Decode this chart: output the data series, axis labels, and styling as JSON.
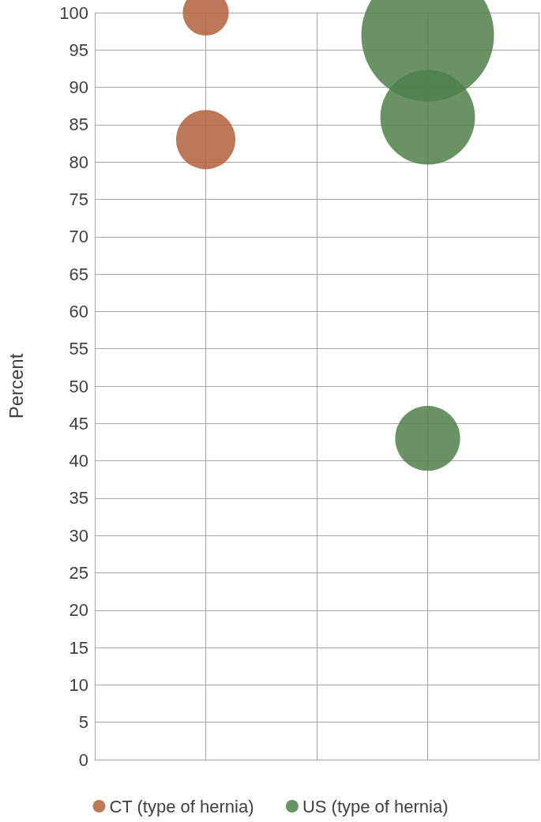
{
  "chart_data": {
    "type": "bubble",
    "ylabel": "Percent",
    "categories": [
      null,
      null,
      null,
      null,
      null
    ],
    "ylim": [
      0,
      100
    ],
    "yticks": [
      0,
      5,
      10,
      15,
      20,
      25,
      30,
      35,
      40,
      45,
      50,
      55,
      60,
      65,
      70,
      75,
      80,
      85,
      90,
      95,
      100
    ],
    "tick_labels": "y",
    "grid": true,
    "legend": "bottom",
    "marker": "circle",
    "series": [
      {
        "name": "CT (type of hernia)",
        "color": "#b0603a",
        "values": [
          null,
          100,
          null,
          null,
          null
        ],
        "sizes": [
          null,
          0.12,
          null,
          null,
          null
        ]
      },
      {
        "color": "#b0603a",
        "values": [
          null,
          83,
          null,
          null,
          null
        ],
        "sizes": [
          null,
          0.2,
          null,
          null,
          null
        ]
      },
      {
        "name": "US (type of hernia)",
        "color": "#4f7f4a",
        "values": [
          null,
          null,
          null,
          97,
          null
        ],
        "sizes": [
          null,
          null,
          null,
          1,
          null
        ]
      },
      {
        "color": "#4f7f4a",
        "values": [
          null,
          null,
          null,
          86,
          null
        ],
        "sizes": [
          null,
          null,
          null,
          0.51,
          null
        ]
      },
      {
        "color": "#4f7f4a",
        "values": [
          null,
          null,
          null,
          43,
          null
        ],
        "sizes": [
          null,
          null,
          null,
          0.24,
          null
        ]
      }
    ]
  }
}
